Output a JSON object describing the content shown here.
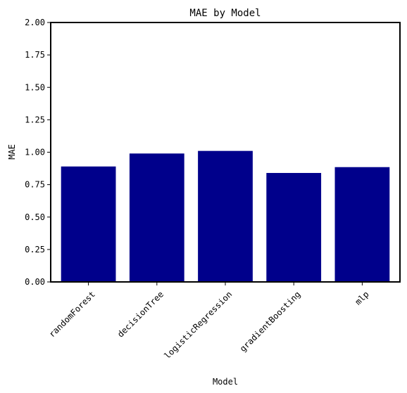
{
  "chart_data": {
    "type": "bar",
    "title": "MAE by Model",
    "xlabel": "Model",
    "ylabel": "MAE",
    "categories": [
      "randomForest",
      "decisionTree",
      "logisticRegression",
      "gradientBoosting",
      "mlp"
    ],
    "values": [
      0.89,
      0.99,
      1.01,
      0.84,
      0.885
    ],
    "ylim": [
      0,
      2.0
    ],
    "yticks": [
      "0.00",
      "0.25",
      "0.50",
      "0.75",
      "1.00",
      "1.25",
      "1.50",
      "1.75",
      "2.00"
    ],
    "bar_color": "#00008b",
    "grid": false,
    "legend": "none"
  }
}
